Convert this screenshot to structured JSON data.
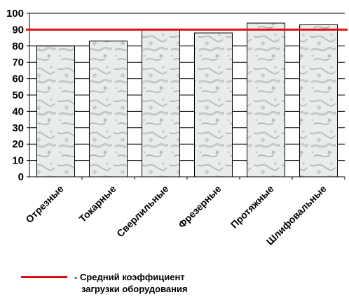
{
  "chart_data": {
    "type": "bar",
    "categories": [
      "Отрезные",
      "Токарные",
      "Сверлильные",
      "Фрезерные",
      "Протяжные",
      "Шлифовальные"
    ],
    "values": [
      80,
      83,
      90,
      88,
      94,
      93
    ],
    "ylim": [
      0,
      100
    ],
    "yticks": [
      0,
      10,
      20,
      30,
      40,
      50,
      60,
      70,
      80,
      90,
      100
    ],
    "grid": true,
    "reference_line": {
      "value": 90,
      "color": "#e01010"
    },
    "bar_fill": "marble-gray-texture"
  },
  "legend": {
    "line_color": "#e01010",
    "text_line1": "- Средний коэффициент",
    "text_line2": "загрузки оборудования"
  }
}
